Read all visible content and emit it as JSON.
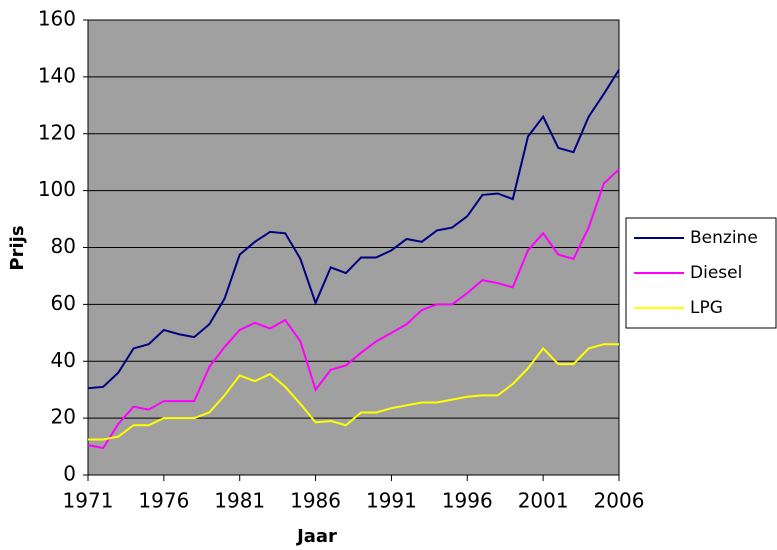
{
  "chart_data": {
    "type": "line",
    "x_label": "Jaar",
    "y_label": "Prijs",
    "x": [
      1971,
      1972,
      1973,
      1974,
      1975,
      1976,
      1977,
      1978,
      1979,
      1980,
      1981,
      1982,
      1983,
      1984,
      1985,
      1986,
      1987,
      1988,
      1989,
      1990,
      1991,
      1992,
      1993,
      1994,
      1995,
      1996,
      1997,
      1998,
      1999,
      2000,
      2001,
      2002,
      2003,
      2004,
      2005,
      2006
    ],
    "series": [
      {
        "name": "Benzine",
        "color": "#000080",
        "values": [
          30.5,
          31,
          36,
          44.5,
          46,
          51,
          49.5,
          48.5,
          53,
          62,
          77.5,
          82,
          85.5,
          85,
          76,
          60.5,
          73,
          71,
          76.5,
          76.5,
          79,
          83,
          82,
          86,
          87,
          91,
          98.5,
          99,
          97,
          119,
          126,
          115,
          113.5,
          126,
          134,
          142.5
        ]
      },
      {
        "name": "Diesel",
        "color": "#ff00ff",
        "values": [
          10.5,
          9.5,
          18,
          24,
          23,
          26,
          26,
          26,
          38,
          45,
          51,
          53.5,
          51.5,
          54.5,
          47,
          30,
          37,
          38.5,
          43,
          47,
          50,
          53,
          58,
          60,
          60,
          64,
          68.5,
          67.5,
          66,
          79,
          85,
          77.5,
          76,
          87,
          102.5,
          107.5
        ]
      },
      {
        "name": "LPG",
        "color": "#ffff00",
        "values": [
          12.5,
          12.5,
          13.5,
          17.5,
          17.5,
          20,
          20,
          20,
          22,
          28,
          35,
          33,
          35.5,
          31,
          25,
          18.5,
          19,
          17.5,
          22,
          22,
          23.5,
          24.5,
          25.5,
          25.5,
          26.5,
          27.5,
          28,
          28,
          32,
          37.5,
          44.5,
          39,
          39,
          44.5,
          46,
          46
        ]
      }
    ],
    "xlim": [
      1971,
      2006
    ],
    "xticks": [
      1971,
      1976,
      1981,
      1986,
      1991,
      1996,
      2001,
      2006
    ],
    "ylim": [
      0,
      160
    ],
    "yticks": [
      0,
      20,
      40,
      60,
      80,
      100,
      120,
      140,
      160
    ],
    "grid": true,
    "legend": "right"
  }
}
